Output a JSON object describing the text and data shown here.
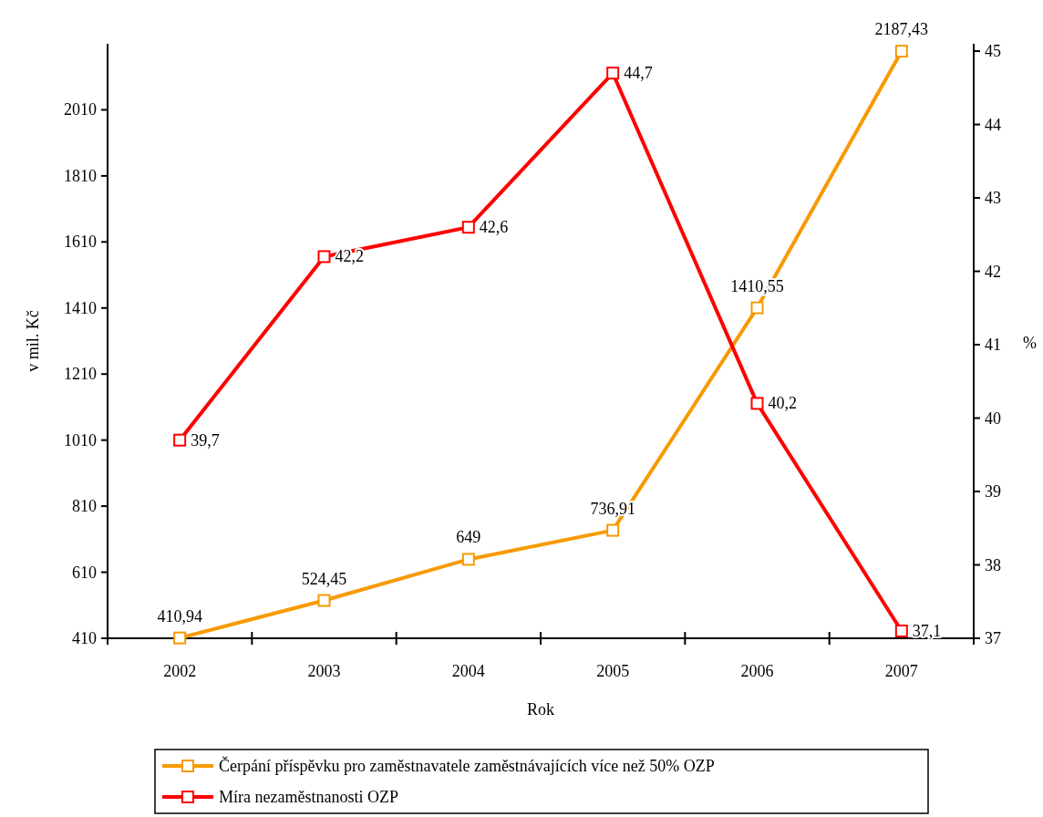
{
  "chart_data": {
    "type": "line",
    "categories": [
      "2002",
      "2003",
      "2004",
      "2005",
      "2006",
      "2007"
    ],
    "xlabel": "Rok",
    "ylabel": "v mil. Kč",
    "y2label": "%",
    "ylim": [
      410,
      2210
    ],
    "yticks": [
      410,
      610,
      810,
      1010,
      1210,
      1410,
      1610,
      1810,
      2010
    ],
    "y2lim": [
      37,
      45.1
    ],
    "y2ticks": [
      37,
      38,
      39,
      40,
      41,
      42,
      43,
      44,
      45
    ],
    "series": [
      {
        "name": "Čerpání příspěvku pro zaměstnavatele zaměstnávajících více než 50% OZP",
        "color": "#f79a00",
        "values": [
          410.94,
          524.45,
          649,
          736.91,
          1410.55,
          2187.43
        ],
        "value_labels": [
          "410,94",
          "524,45",
          "649",
          "736,91",
          "1410,55",
          "2187,43"
        ]
      },
      {
        "name": "Míra nezaměstnanosti OZP",
        "color": "#ff0000",
        "axis": "y2",
        "values": [
          39.7,
          42.2,
          42.6,
          44.7,
          40.2,
          37.1
        ],
        "value_labels": [
          "39,7",
          "42,2",
          "42,6",
          "44,7",
          "40,2",
          "37,1"
        ]
      }
    ],
    "marker": "square",
    "line_style": "solid",
    "legend": "bottom",
    "grid": false
  }
}
